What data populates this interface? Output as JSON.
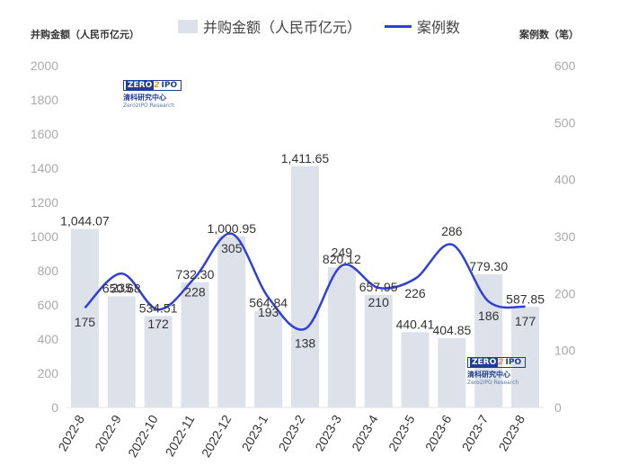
{
  "header": {
    "left_axis_title": "并购金额（人民币亿元）",
    "right_axis_title": "案例数（笔）",
    "legend_bar_label": "并购金额（人民币亿元）",
    "legend_line_label": "案例数"
  },
  "logo": {
    "brand_part1": "ZERO",
    "brand_part2": "2",
    "brand_part3": "IPO",
    "name_cn": "清科研究中心",
    "name_en": "Zero2IPO Research"
  },
  "chart_data": {
    "type": "bar",
    "categories": [
      "2022-8",
      "2022-9",
      "2022-10",
      "2022-11",
      "2022-12",
      "2023-1",
      "2023-2",
      "2023-3",
      "2023-4",
      "2023-5",
      "2023-6",
      "2023-7",
      "2023-8"
    ],
    "series": [
      {
        "name": "并购金额（人民币亿元）",
        "type": "bar",
        "axis": "left",
        "values": [
          1044.07,
          650.68,
          534.51,
          732.3,
          1000.95,
          564.84,
          1411.65,
          820.12,
          657.95,
          440.41,
          404.85,
          779.3,
          587.85
        ],
        "labels": [
          "1,044.07",
          "650.68",
          "534.51",
          "732.30",
          "1,000.95",
          "564.84",
          "1,411.65",
          "820.12",
          "657.95",
          "440.41",
          "404.85",
          "779.30",
          "587.85"
        ]
      },
      {
        "name": "案例数",
        "type": "line",
        "axis": "right",
        "values": [
          175,
          235,
          172,
          228,
          305,
          193,
          138,
          249,
          210,
          226,
          286,
          186,
          177
        ],
        "labels": [
          "175",
          "235",
          "172",
          "228",
          "305",
          "193",
          "138",
          "249",
          "210",
          "226",
          "286",
          "186",
          "177"
        ]
      }
    ],
    "ylim_left": [
      0,
      2000
    ],
    "ylim_right": [
      0,
      600
    ],
    "yticks_left": [
      "0",
      "200",
      "400",
      "600",
      "800",
      "1000",
      "1200",
      "1400",
      "1600",
      "1800",
      "2000"
    ],
    "yticks_right": [
      "0",
      "100",
      "200",
      "300",
      "400",
      "500",
      "600"
    ],
    "ylabel_left": "并购金额（人民币亿元）",
    "ylabel_right": "案例数（笔）",
    "grid": false,
    "legend_position": "top",
    "colors": {
      "bar": "#dde1ea",
      "line": "#2f3fd8",
      "text": "#333333",
      "axis_text": "#aaaaaa"
    }
  }
}
